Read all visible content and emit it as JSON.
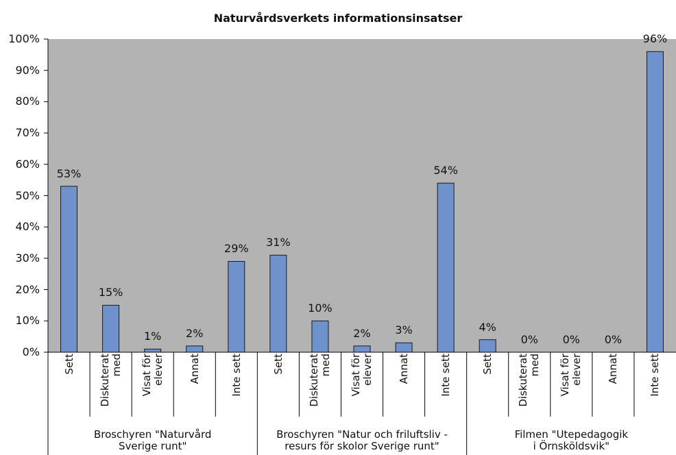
{
  "chart_data": {
    "type": "bar",
    "title": "Naturvårdsverkets informationsinsatser",
    "categories": [
      "Sett",
      "Diskuterat\nmed",
      "Visat för\nelever",
      "Annat",
      "Inte sett",
      "Sett",
      "Diskuterat\nmed",
      "Visat för\nelever",
      "Annat",
      "Inte sett",
      "Sett",
      "Diskuterat\nmed",
      "Visat för\nelever",
      "Annat",
      "Inte sett"
    ],
    "groups": [
      "Broschyren \"Naturvård\nSverige runt\"",
      "Broschyren \"Natur och friluftsliv -\nresurs för skolor Sverige runt\"",
      "Filmen \"Utepedagogik\ni Örnsköldsvik\""
    ],
    "values": [
      53,
      15,
      1,
      2,
      29,
      31,
      10,
      2,
      3,
      54,
      4,
      0,
      0,
      0,
      96
    ],
    "value_labels": [
      "53%",
      "15%",
      "1%",
      "2%",
      "29%",
      "31%",
      "10%",
      "2%",
      "3%",
      "54%",
      "4%",
      "0%",
      "0%",
      "0%",
      "96%"
    ],
    "color": "#7092cc",
    "ylim": [
      0,
      100
    ],
    "yticks": [
      {
        "value": 0,
        "label": "0%"
      },
      {
        "value": 10,
        "label": "10%"
      },
      {
        "value": 20,
        "label": "20%"
      },
      {
        "value": 30,
        "label": "30%"
      },
      {
        "value": 40,
        "label": "40%"
      },
      {
        "value": 50,
        "label": "50%"
      },
      {
        "value": 60,
        "label": "60%"
      },
      {
        "value": 70,
        "label": "70%"
      },
      {
        "value": 80,
        "label": "80%"
      },
      {
        "value": 90,
        "label": "90%"
      },
      {
        "value": 100,
        "label": "100%"
      }
    ]
  }
}
